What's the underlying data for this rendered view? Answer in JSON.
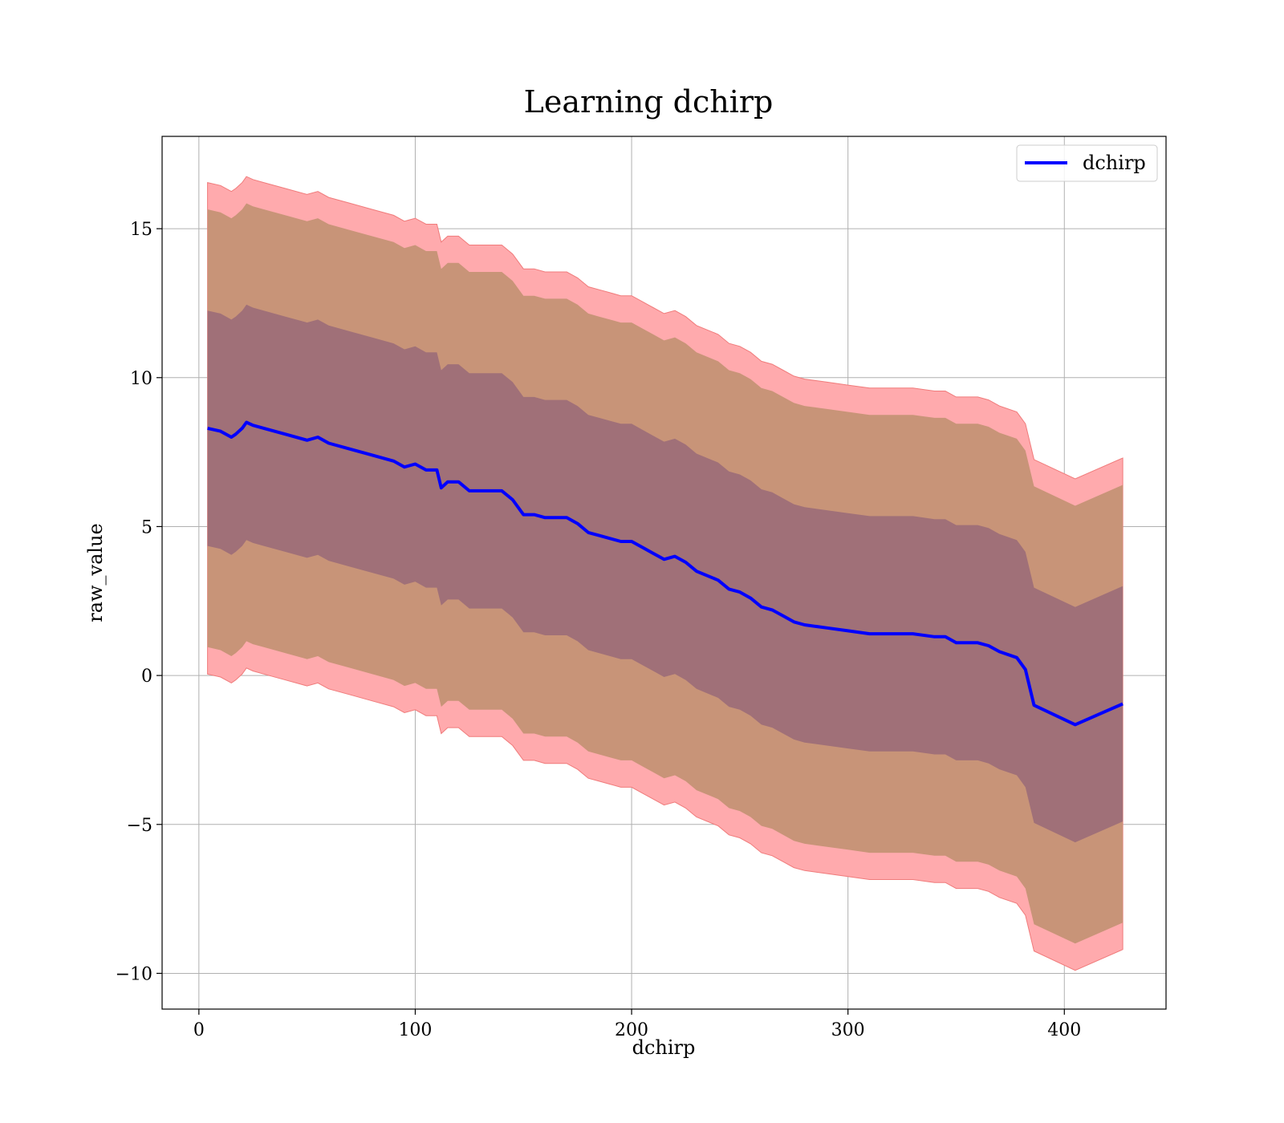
{
  "chart_data": {
    "type": "line",
    "title": "Learning dchirp",
    "xlabel": "dchirp",
    "ylabel": "raw_value",
    "xlim": [
      -17,
      447
    ],
    "ylim": [
      -11.2,
      18.1
    ],
    "xticks": [
      0,
      100,
      200,
      300,
      400
    ],
    "yticks": [
      -10,
      -5,
      0,
      5,
      10,
      15
    ],
    "xtick_labels": [
      "0",
      "100",
      "200",
      "300",
      "400"
    ],
    "ytick_labels": [
      "−10",
      "−5",
      "0",
      "5",
      "10",
      "15"
    ],
    "grid": true,
    "legend": {
      "position": "top-right",
      "entries": [
        "dchirp"
      ]
    },
    "colors": {
      "line": "#0000ff",
      "band_inner": "#a07078",
      "band_middle": "#c89478",
      "band_outer": "#ffaaad",
      "band_outer_edge": "#f07b7b"
    },
    "series": [
      {
        "name": "dchirp",
        "x": [
          4,
          10,
          15,
          17,
          20,
          22,
          25,
          30,
          40,
          50,
          55,
          60,
          70,
          80,
          90,
          95,
          100,
          105,
          110,
          112,
          115,
          120,
          125,
          130,
          140,
          145,
          150,
          155,
          160,
          170,
          175,
          180,
          185,
          190,
          195,
          200,
          205,
          210,
          215,
          220,
          225,
          230,
          240,
          245,
          250,
          255,
          260,
          265,
          270,
          275,
          280,
          290,
          300,
          310,
          315,
          320,
          330,
          340,
          345,
          350,
          360,
          365,
          370,
          378,
          382,
          386,
          405,
          427
        ],
        "mean": [
          8.3,
          8.2,
          8.0,
          8.1,
          8.3,
          8.5,
          8.4,
          8.3,
          8.1,
          7.9,
          8.0,
          7.8,
          7.6,
          7.4,
          7.2,
          7.0,
          7.1,
          6.9,
          6.9,
          6.3,
          6.5,
          6.5,
          6.2,
          6.2,
          6.2,
          5.9,
          5.4,
          5.4,
          5.3,
          5.3,
          5.1,
          4.8,
          4.7,
          4.6,
          4.5,
          4.5,
          4.3,
          4.1,
          3.9,
          4.0,
          3.8,
          3.5,
          3.2,
          2.9,
          2.8,
          2.6,
          2.3,
          2.2,
          2.0,
          1.8,
          1.7,
          1.6,
          1.5,
          1.4,
          1.4,
          1.4,
          1.4,
          1.3,
          1.3,
          1.1,
          1.1,
          1.0,
          0.8,
          0.6,
          0.2,
          -1.0,
          -1.65,
          -0.95
        ],
        "band_inner_offset": 3.95,
        "band_middle_offset": 7.35,
        "band_outer_offset": 8.25
      }
    ]
  }
}
